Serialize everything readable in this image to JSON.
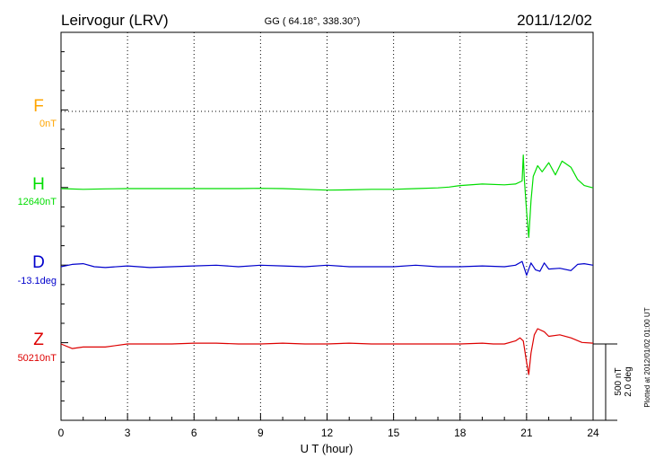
{
  "header": {
    "station": "Leirvogur (LRV)",
    "coords": "GG ( 64.18°, 338.30°)",
    "date": "2011/12/02"
  },
  "components": [
    {
      "letter": "F",
      "baseline": "0nT",
      "color": "#ffa500"
    },
    {
      "letter": "H",
      "baseline": "12640nT",
      "color": "#00dd00"
    },
    {
      "letter": "D",
      "baseline": "-13.1deg",
      "color": "#0000cc"
    },
    {
      "letter": "Z",
      "baseline": "50210nT",
      "color": "#dd0000"
    }
  ],
  "scale": {
    "line1": "500 nT",
    "line2": "2.0 deg"
  },
  "footer": {
    "plotted": "Plotted at 2012/01/02 01:00 UT"
  },
  "chart_data": {
    "type": "line",
    "title": "Leirvogur (LRV)",
    "xlabel": "U T (hour)",
    "ylabel": "",
    "xlim": [
      0,
      24
    ],
    "xticks": [
      "0",
      "3",
      "6",
      "9",
      "12",
      "15",
      "18",
      "21",
      "24"
    ],
    "grid": true,
    "series": [
      {
        "name": "F",
        "unit": "nT",
        "x": [
          0,
          24
        ],
        "y": [
          0,
          0
        ]
      },
      {
        "name": "H",
        "unit": "nT",
        "x": [
          0,
          1,
          2,
          3,
          4,
          5,
          6,
          7,
          8,
          9,
          10,
          11,
          12,
          13,
          14,
          15,
          16,
          17,
          17.5,
          18,
          19,
          20,
          20.5,
          20.8,
          20.85,
          20.9,
          21.0,
          21.1,
          21.2,
          21.3,
          21.5,
          21.7,
          22,
          22.3,
          22.6,
          23,
          23.3,
          23.6,
          24
        ],
        "y": [
          0,
          -5,
          -2,
          0,
          0,
          0,
          0,
          0,
          0,
          2,
          0,
          -5,
          -10,
          -8,
          -5,
          -5,
          0,
          5,
          10,
          20,
          30,
          25,
          30,
          50,
          220,
          60,
          -150,
          -320,
          -80,
          80,
          150,
          110,
          170,
          90,
          180,
          140,
          60,
          20,
          5
        ]
      },
      {
        "name": "D",
        "unit": "deg",
        "x": [
          0,
          0.5,
          1,
          1.5,
          2,
          3,
          4,
          5,
          6,
          7,
          8,
          9,
          10,
          11,
          12,
          13,
          14,
          15,
          16,
          17,
          18,
          19,
          20,
          20.5,
          20.8,
          21.0,
          21.2,
          21.4,
          21.6,
          21.8,
          22,
          22.5,
          23,
          23.3,
          23.6,
          24
        ],
        "y": [
          0.0,
          0.06,
          0.08,
          0.0,
          -0.02,
          0.02,
          -0.02,
          0.0,
          0.02,
          0.04,
          0.0,
          0.04,
          0.02,
          0.0,
          0.04,
          0.0,
          0.0,
          0.0,
          0.04,
          0.0,
          0.0,
          0.02,
          0.0,
          0.04,
          0.14,
          -0.22,
          0.1,
          -0.08,
          -0.12,
          0.1,
          -0.06,
          -0.04,
          -0.1,
          0.06,
          0.08,
          0.04
        ]
      },
      {
        "name": "Z",
        "unit": "nT",
        "x": [
          0,
          0.5,
          1,
          2,
          3,
          4,
          5,
          6,
          7,
          8,
          9,
          10,
          11,
          12,
          13,
          14,
          15,
          16,
          17,
          18,
          19,
          19.5,
          20,
          20.5,
          20.7,
          20.85,
          21.0,
          21.1,
          21.2,
          21.35,
          21.5,
          21.8,
          22,
          22.5,
          23,
          23.5,
          24
        ],
        "y": [
          0,
          -30,
          -20,
          -20,
          0,
          0,
          0,
          5,
          5,
          0,
          0,
          5,
          0,
          0,
          5,
          0,
          0,
          0,
          0,
          0,
          5,
          0,
          0,
          20,
          40,
          20,
          -120,
          -200,
          -60,
          60,
          100,
          80,
          50,
          60,
          40,
          10,
          5
        ]
      }
    ]
  }
}
